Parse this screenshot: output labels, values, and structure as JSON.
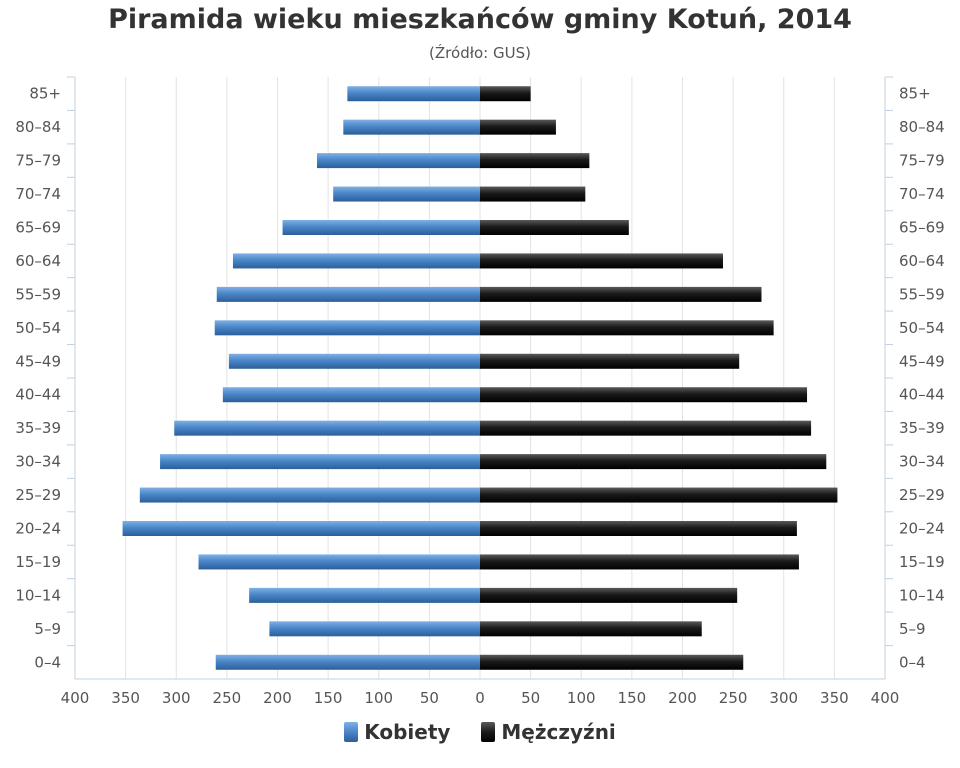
{
  "chart_data": {
    "type": "bar",
    "title": "Piramida wieku mieszkańców gminy Kotuń, 2014",
    "subtitle": "(Źródło: GUS)",
    "categories": [
      "85+",
      "80–84",
      "75–79",
      "70–74",
      "65–69",
      "60–64",
      "55–59",
      "50–54",
      "45–49",
      "40–44",
      "35–39",
      "30–34",
      "25–29",
      "20–24",
      "15–19",
      "10–14",
      "5–9",
      "0–4"
    ],
    "series": [
      {
        "name": "Kobiety",
        "color": "#4a86c8",
        "values": [
          131,
          135,
          161,
          145,
          195,
          244,
          260,
          262,
          248,
          254,
          302,
          316,
          336,
          353,
          278,
          228,
          208,
          261
        ]
      },
      {
        "name": "Mężczyźni",
        "color": "#1a1a1a",
        "values": [
          50,
          75,
          108,
          104,
          147,
          240,
          278,
          290,
          256,
          323,
          327,
          342,
          353,
          313,
          315,
          254,
          219,
          260
        ]
      }
    ],
    "x_ticks": [
      "400",
      "350",
      "300",
      "250",
      "200",
      "150",
      "100",
      "50",
      "0",
      "50",
      "100",
      "150",
      "200",
      "250",
      "300",
      "350",
      "400"
    ],
    "xlim": [
      -400,
      400
    ],
    "grid": true,
    "legend_position": "bottom"
  }
}
